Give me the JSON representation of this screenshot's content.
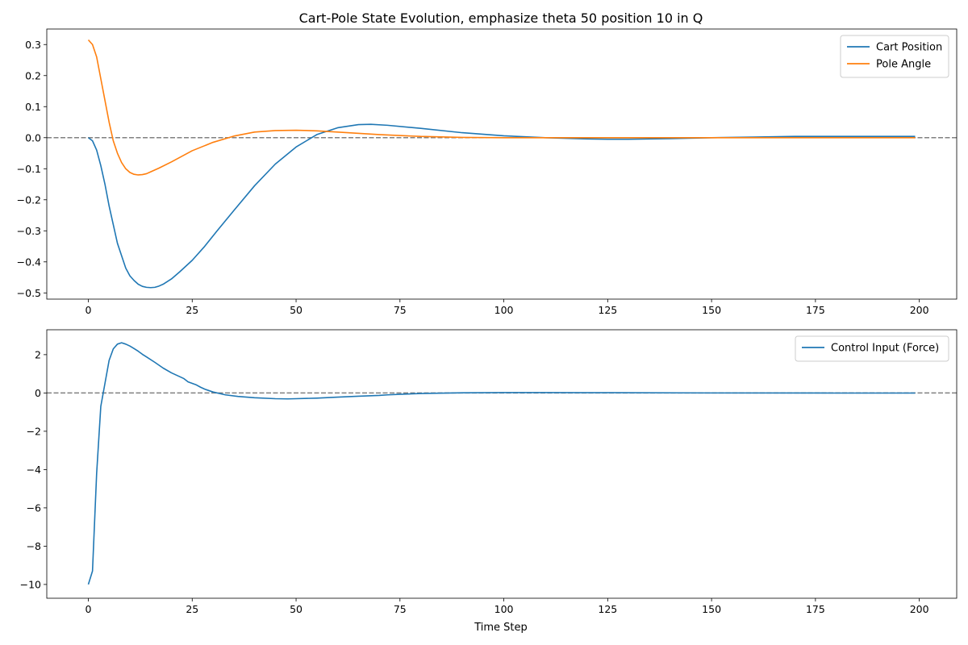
{
  "chart_data": [
    {
      "type": "line",
      "title": "Cart-Pole State Evolution, emphasize theta 50 position 10 in Q",
      "xlabel": "",
      "ylabel": "",
      "xlim": [
        -10,
        209
      ],
      "ylim": [
        -0.52,
        0.35
      ],
      "xticks": [
        0,
        25,
        50,
        75,
        100,
        125,
        150,
        175,
        200
      ],
      "xtick_labels": [
        "0",
        "25",
        "50",
        "75",
        "100",
        "125",
        "150",
        "175",
        "200"
      ],
      "yticks": [
        0.3,
        0.2,
        0.1,
        0.0,
        -0.1,
        -0.2,
        -0.3,
        -0.4,
        -0.5
      ],
      "ytick_labels": [
        "0.3",
        "0.2",
        "0.1",
        "0.0",
        "−0.1",
        "−0.2",
        "−0.3",
        "−0.4",
        "−0.5"
      ],
      "reference_line": 0,
      "legend_position": "top-right",
      "series": [
        {
          "name": "Cart Position",
          "color": "#1f77b4",
          "x": [
            0,
            1,
            2,
            3,
            4,
            5,
            6,
            7,
            8,
            9,
            10,
            11,
            12,
            13,
            14,
            15,
            16,
            17,
            18,
            20,
            22,
            25,
            28,
            31,
            35,
            40,
            45,
            50,
            55,
            60,
            65,
            68,
            72,
            80,
            90,
            100,
            110,
            120,
            125,
            130,
            140,
            150,
            160,
            170,
            175,
            180,
            190,
            199
          ],
          "y": [
            0.0,
            -0.01,
            -0.04,
            -0.09,
            -0.15,
            -0.22,
            -0.28,
            -0.34,
            -0.38,
            -0.42,
            -0.445,
            -0.46,
            -0.472,
            -0.479,
            -0.482,
            -0.483,
            -0.482,
            -0.478,
            -0.472,
            -0.455,
            -0.432,
            -0.395,
            -0.35,
            -0.3,
            -0.235,
            -0.155,
            -0.085,
            -0.03,
            0.01,
            0.032,
            0.042,
            0.043,
            0.04,
            0.03,
            0.016,
            0.006,
            0.0,
            -0.004,
            -0.005,
            -0.005,
            -0.003,
            0.0,
            0.002,
            0.004,
            0.004,
            0.004,
            0.004,
            0.004
          ]
        },
        {
          "name": "Pole Angle",
          "color": "#ff7f0e",
          "x": [
            0,
            1,
            2,
            3,
            4,
            5,
            6,
            7,
            8,
            9,
            10,
            11,
            12,
            13,
            14,
            15,
            17,
            20,
            25,
            30,
            35,
            40,
            45,
            50,
            55,
            60,
            70,
            80,
            90,
            100,
            120,
            150,
            180,
            199
          ],
          "y": [
            0.315,
            0.3,
            0.26,
            0.19,
            0.12,
            0.05,
            -0.01,
            -0.05,
            -0.08,
            -0.1,
            -0.112,
            -0.118,
            -0.12,
            -0.119,
            -0.116,
            -0.11,
            -0.098,
            -0.078,
            -0.042,
            -0.015,
            0.005,
            0.018,
            0.023,
            0.024,
            0.022,
            0.018,
            0.01,
            0.004,
            0.001,
            0.0,
            0.0,
            0.0,
            0.0,
            0.0
          ]
        }
      ]
    },
    {
      "type": "line",
      "title": "",
      "xlabel": "Time Step",
      "ylabel": "",
      "xlim": [
        -10,
        209
      ],
      "ylim": [
        -10.72,
        3.3
      ],
      "xticks": [
        0,
        25,
        50,
        75,
        100,
        125,
        150,
        175,
        200
      ],
      "xtick_labels": [
        "0",
        "25",
        "50",
        "75",
        "100",
        "125",
        "150",
        "175",
        "200"
      ],
      "yticks": [
        2,
        0,
        -2,
        -4,
        -6,
        -8,
        -10
      ],
      "ytick_labels": [
        "2",
        "0",
        "−2",
        "−4",
        "−6",
        "−8",
        "−10"
      ],
      "reference_line": 0,
      "legend_position": "top-right",
      "series": [
        {
          "name": "Control Input (Force)",
          "color": "#1f77b4",
          "x": [
            0,
            1,
            2,
            3,
            4,
            5,
            6,
            7,
            8,
            9,
            10,
            11,
            12,
            13,
            14,
            16,
            18,
            20,
            22,
            23,
            24,
            25,
            26,
            27,
            28,
            30,
            33,
            36,
            40,
            45,
            48,
            50,
            55,
            60,
            65,
            70,
            72,
            75,
            80,
            90,
            100,
            110,
            120,
            150,
            180,
            199
          ],
          "y": [
            -10.0,
            -9.3,
            -4.2,
            -0.7,
            0.5,
            1.7,
            2.3,
            2.55,
            2.62,
            2.55,
            2.45,
            2.32,
            2.18,
            2.02,
            1.88,
            1.6,
            1.3,
            1.05,
            0.85,
            0.75,
            0.58,
            0.5,
            0.42,
            0.3,
            0.2,
            0.05,
            -0.1,
            -0.18,
            -0.25,
            -0.3,
            -0.31,
            -0.3,
            -0.27,
            -0.22,
            -0.17,
            -0.13,
            -0.1,
            -0.07,
            -0.03,
            0.01,
            0.02,
            0.02,
            0.015,
            0.0,
            -0.005,
            -0.005
          ]
        }
      ]
    }
  ]
}
